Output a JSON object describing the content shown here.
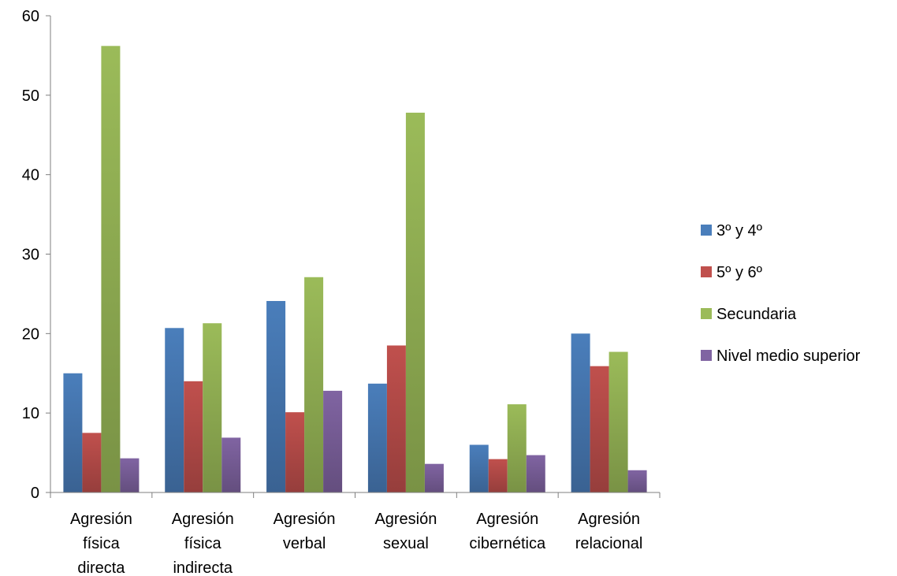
{
  "chart_data": {
    "type": "bar",
    "title": "",
    "xlabel": "",
    "ylabel": "",
    "ylim": [
      0,
      60
    ],
    "yticks": [
      0,
      10,
      20,
      30,
      40,
      50,
      60
    ],
    "grid": false,
    "legend_position": "right",
    "categories": [
      [
        "Agresión",
        "física",
        "directa"
      ],
      [
        "Agresión",
        "física",
        "indirecta"
      ],
      [
        "Agresión",
        "verbal"
      ],
      [
        "Agresión",
        "sexual"
      ],
      [
        "Agresión",
        "cibernética"
      ],
      [
        "Agresión",
        "relacional"
      ]
    ],
    "series": [
      {
        "name": "3º y 4º",
        "color": "#4a7ebb",
        "values": [
          15.0,
          20.7,
          24.1,
          13.7,
          6.0,
          20.0
        ]
      },
      {
        "name": "5º y 6º",
        "color": "#c0504d",
        "values": [
          7.5,
          14.0,
          10.1,
          18.5,
          4.2,
          15.9
        ]
      },
      {
        "name": "Secundaria",
        "color": "#9bbb59",
        "values": [
          56.2,
          21.3,
          27.1,
          47.8,
          11.1,
          17.7
        ]
      },
      {
        "name": "Nivel medio superior",
        "color": "#8064a2",
        "values": [
          4.3,
          6.9,
          12.8,
          3.6,
          4.7,
          2.8
        ]
      }
    ]
  }
}
